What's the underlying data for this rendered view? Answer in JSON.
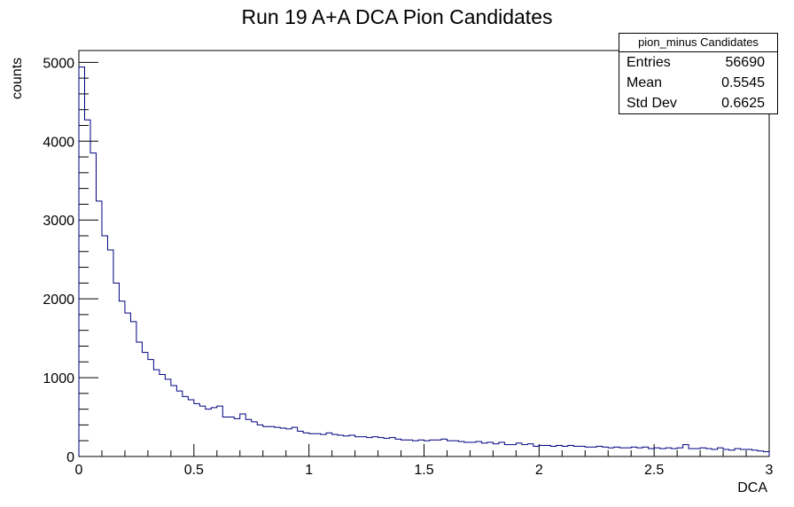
{
  "chart_data": {
    "type": "bar",
    "title": "Run 19 A+A DCA Pion Candidates",
    "xlabel": "DCA",
    "ylabel": "counts",
    "xlim": [
      0,
      3
    ],
    "ylim": [
      0,
      5150
    ],
    "bin_width": 0.025,
    "x_ticks": [
      "0",
      "0.5",
      "1",
      "1.5",
      "2",
      "2.5",
      "3"
    ],
    "y_ticks": [
      "0",
      "1000",
      "2000",
      "3000",
      "4000",
      "5000"
    ],
    "line_color": "#000080",
    "values": [
      4940,
      4270,
      3850,
      3240,
      2800,
      2620,
      2200,
      1970,
      1820,
      1710,
      1450,
      1320,
      1230,
      1100,
      1040,
      980,
      900,
      830,
      760,
      720,
      670,
      640,
      600,
      620,
      640,
      500,
      500,
      480,
      540,
      470,
      440,
      400,
      380,
      380,
      370,
      360,
      350,
      370,
      320,
      300,
      290,
      290,
      280,
      300,
      280,
      270,
      260,
      270,
      250,
      250,
      240,
      250,
      240,
      230,
      240,
      220,
      210,
      210,
      200,
      210,
      200,
      210,
      210,
      220,
      200,
      200,
      190,
      180,
      180,
      190,
      170,
      180,
      160,
      180,
      150,
      150,
      170,
      150,
      160,
      130,
      140,
      140,
      130,
      140,
      130,
      140,
      130,
      130,
      120,
      120,
      130,
      120,
      110,
      120,
      110,
      110,
      120,
      110,
      120,
      100,
      110,
      100,
      110,
      100,
      110,
      150,
      100,
      100,
      110,
      100,
      90,
      110,
      90,
      80,
      100,
      90,
      90,
      80,
      70,
      60
    ]
  },
  "stats_box": {
    "title": "pion_minus Candidates",
    "rows": [
      {
        "label": "Entries",
        "value": "56690"
      },
      {
        "label": "Mean",
        "value": "0.5545"
      },
      {
        "label": "Std Dev",
        "value": "0.6625"
      }
    ]
  }
}
